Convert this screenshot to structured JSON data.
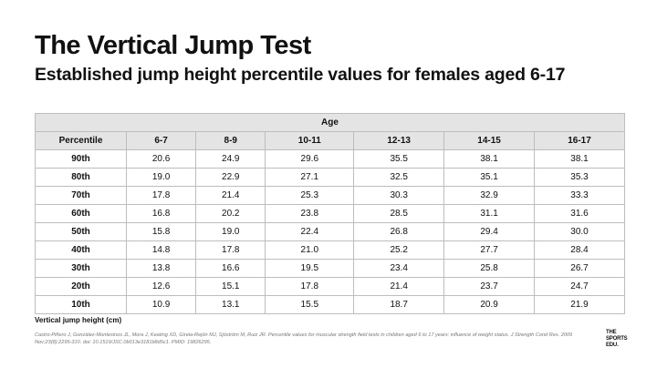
{
  "header": {
    "title": "The Vertical Jump Test",
    "subtitle": "Established jump height percentile values for females aged 6-17"
  },
  "table": {
    "group_header": "Age",
    "columns": [
      "Percentile",
      "6-7",
      "8-9",
      "10-11",
      "12-13",
      "14-15",
      "16-17"
    ],
    "rows": [
      [
        "90th",
        "20.6",
        "24.9",
        "29.6",
        "35.5",
        "38.1",
        "38.1"
      ],
      [
        "80th",
        "19.0",
        "22.9",
        "27.1",
        "32.5",
        "35.1",
        "35.3"
      ],
      [
        "70th",
        "17.8",
        "21.4",
        "25.3",
        "30.3",
        "32.9",
        "33.3"
      ],
      [
        "60th",
        "16.8",
        "20.2",
        "23.8",
        "28.5",
        "31.1",
        "31.6"
      ],
      [
        "50th",
        "15.8",
        "19.0",
        "22.4",
        "26.8",
        "29.4",
        "30.0"
      ],
      [
        "40th",
        "14.8",
        "17.8",
        "21.0",
        "25.2",
        "27.7",
        "28.4"
      ],
      [
        "30th",
        "13.8",
        "16.6",
        "19.5",
        "23.4",
        "25.8",
        "26.7"
      ],
      [
        "20th",
        "12.6",
        "15.1",
        "17.8",
        "21.4",
        "23.7",
        "24.7"
      ],
      [
        "10th",
        "10.9",
        "13.1",
        "15.5",
        "18.7",
        "20.9",
        "21.9"
      ]
    ]
  },
  "footer": {
    "note": "Vertical jump height (cm)",
    "citation": "Castro-Piñero J, González-Montesinos JL, Mora J, Keating XD, Girela-Rejón MJ, Sjöström M, Ruiz JR. Percentile values for muscular strength field tests in children aged 6 to 17 years: influence of weight status. J Strength Cond Res. 2009 Nov;23(8):2295-310. doi: 10.1519/JSC.0b013e3181b8d5c1. PMID: 19826295.",
    "logo": [
      "THE",
      "SPORTS",
      "EDU."
    ]
  }
}
